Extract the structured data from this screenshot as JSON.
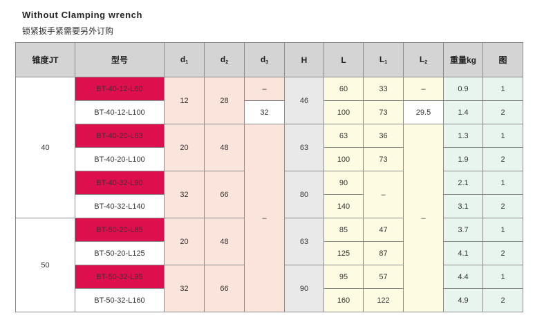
{
  "title": "Without Clamping wrench",
  "subtitle": "锁紧扳手紧需要另外订购",
  "columns": {
    "taper": "锥度JT",
    "model": "型号",
    "d1": {
      "base": "d",
      "sub": "1"
    },
    "d2": {
      "base": "d",
      "sub": "2"
    },
    "d3": {
      "base": "d",
      "sub": "3"
    },
    "H": "H",
    "L": "L",
    "L1": {
      "base": "L",
      "sub": "1"
    },
    "L2": {
      "base": "L",
      "sub": "2"
    },
    "weight": "重量kg",
    "fig": "图"
  },
  "taper_groups": [
    "40",
    "50"
  ],
  "rows": [
    {
      "model": "BT-40-12-L60",
      "L": "60",
      "weight": "0.9",
      "fig": "1"
    },
    {
      "model": "BT-40-12-L100",
      "L": "100",
      "weight": "1.4",
      "fig": "2"
    },
    {
      "model": "BT-40-20-L63",
      "L": "63",
      "weight": "1.3",
      "fig": "1"
    },
    {
      "model": "BT-40-20-L100",
      "L": "100",
      "weight": "1.9",
      "fig": "2"
    },
    {
      "model": "BT-40-32-L90",
      "L": "90",
      "weight": "2.1",
      "fig": "1"
    },
    {
      "model": "BT-40-32-L140",
      "L": "140",
      "weight": "3.1",
      "fig": "2"
    },
    {
      "model": "BT-50-20-L85",
      "L": "85",
      "weight": "3.7",
      "fig": "1"
    },
    {
      "model": "BT-50-20-L125",
      "L": "125",
      "weight": "4.1",
      "fig": "2"
    },
    {
      "model": "BT-50-32-L95",
      "L": "95",
      "weight": "4.4",
      "fig": "1"
    },
    {
      "model": "BT-50-32-L160",
      "L": "160",
      "weight": "4.9",
      "fig": "2"
    }
  ],
  "d1_groups": [
    "12",
    "20",
    "32",
    "20",
    "32"
  ],
  "d2_groups": [
    "28",
    "48",
    "66",
    "48",
    "66"
  ],
  "d3": {
    "row1": "–",
    "row2": "32",
    "rest": "–"
  },
  "H_groups": [
    "46",
    "63",
    "80",
    "63",
    "90"
  ],
  "L1": {
    "r1": "33",
    "r2": "73",
    "r3": "36",
    "r4": "73",
    "r5_6": "–",
    "r7": "47",
    "r8": "87",
    "r9": "57",
    "r10": "122"
  },
  "L2": {
    "row1": "–",
    "row2": "29.5",
    "rest": "–"
  },
  "colors": {
    "header_bg": "#d4d4d4",
    "model_highlight": "#dd0f4c",
    "d_columns": "#fbe4dc",
    "H_column": "#e9e9e9",
    "L_columns": "#fdfbe2",
    "weight_fig_columns": "#e8f4ee"
  }
}
